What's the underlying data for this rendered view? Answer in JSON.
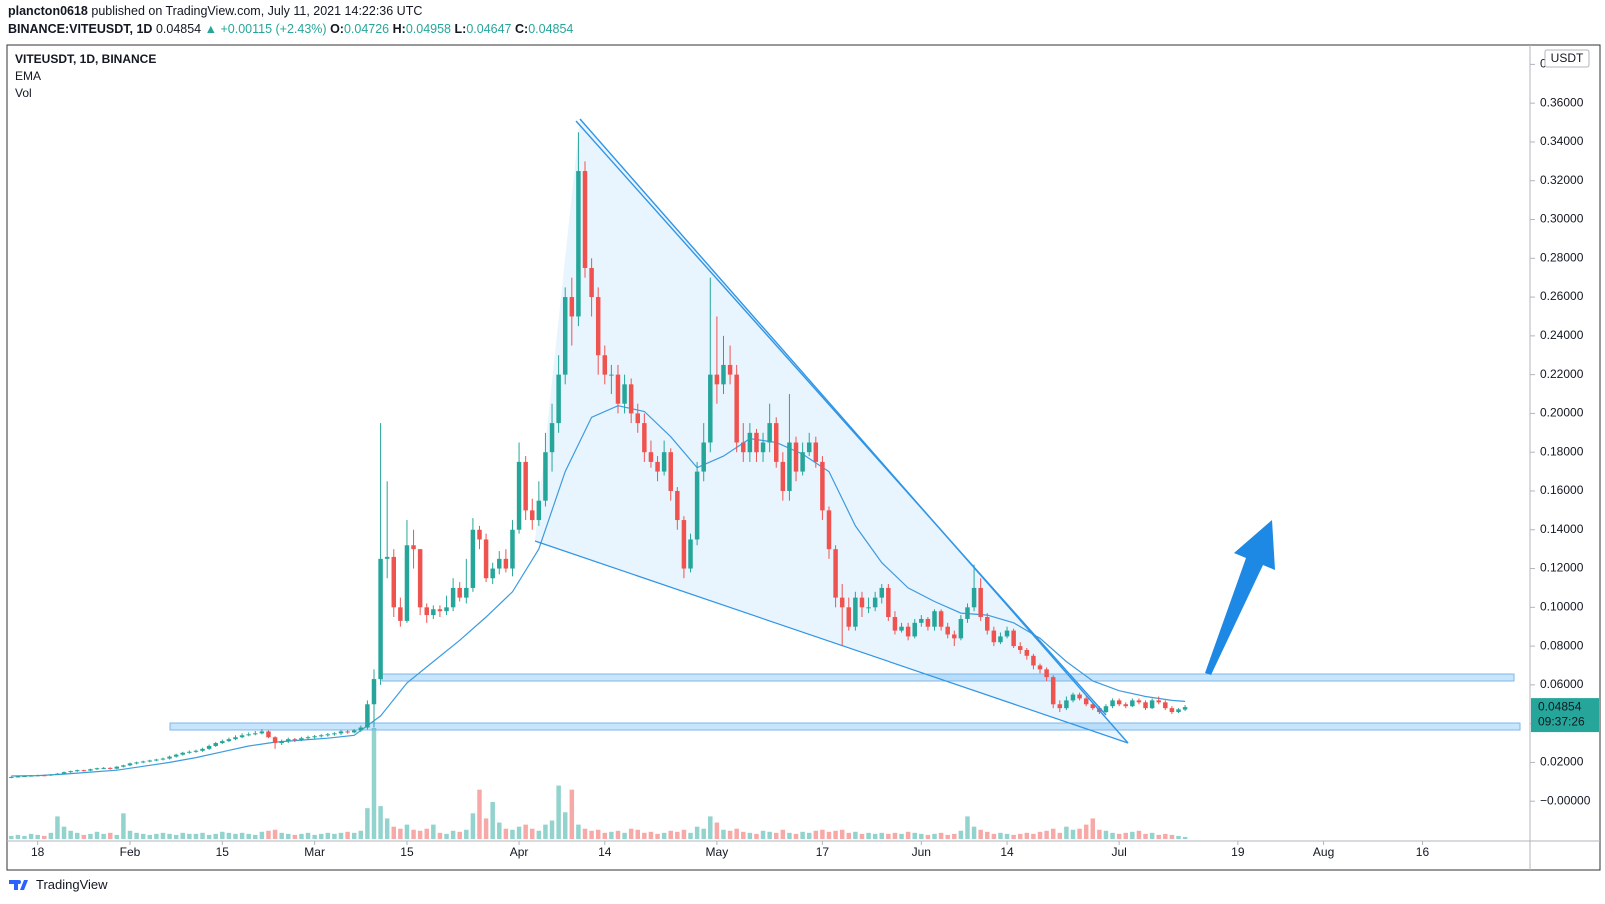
{
  "header": {
    "publisher": "plancton0618",
    "published": "published on TradingView.com, July 11, 2021 14:22:36 UTC",
    "symbol": "BINANCE:VITEUSDT, 1D",
    "last": "0.04854",
    "change": "▲ +0.00115 (+2.43%)",
    "o_label": "O:",
    "o": "0.04726",
    "h_label": "H:",
    "h": "0.04958",
    "l_label": "L:",
    "l": "0.04647",
    "c_label": "C:",
    "c": "0.04854",
    "footer": "TradingView"
  },
  "chart_data": {
    "type": "candlestick",
    "legend": [
      "VITEUSDT, 1D, BINANCE",
      "EMA",
      "Vol"
    ],
    "currency": "USDT",
    "countdown": "09:37:26",
    "up_color": "#26a69a",
    "down_color": "#ef5350",
    "vol_up_color": "#92d3cd",
    "vol_down_color": "#f7a9a7",
    "grid": false,
    "xlim": [
      -0.5,
      230
    ],
    "ylim": [
      -0.02,
      0.39
    ],
    "xticks": [
      {
        "value": 4,
        "label": "18"
      },
      {
        "value": 18,
        "label": "Feb"
      },
      {
        "value": 32,
        "label": "15"
      },
      {
        "value": 46,
        "label": "Mar"
      },
      {
        "value": 60,
        "label": "15"
      },
      {
        "value": 77,
        "label": "Apr"
      },
      {
        "value": 90,
        "label": "14"
      },
      {
        "value": 107,
        "label": "May"
      },
      {
        "value": 123,
        "label": "17"
      },
      {
        "value": 138,
        "label": "Jun"
      },
      {
        "value": 151,
        "label": "14"
      },
      {
        "value": 168,
        "label": "Jul"
      },
      {
        "value": 186,
        "label": "19"
      },
      {
        "value": 199,
        "label": "Aug"
      },
      {
        "value": 214,
        "label": "16"
      }
    ],
    "yticks": [
      {
        "value": 0.38,
        "label": "0"
      },
      {
        "value": 0.36,
        "label": "0.36000"
      },
      {
        "value": 0.34,
        "label": "0.34000"
      },
      {
        "value": 0.32,
        "label": "0.32000"
      },
      {
        "value": 0.3,
        "label": "0.30000"
      },
      {
        "value": 0.28,
        "label": "0.28000"
      },
      {
        "value": 0.26,
        "label": "0.26000"
      },
      {
        "value": 0.24,
        "label": "0.24000"
      },
      {
        "value": 0.22,
        "label": "0.22000"
      },
      {
        "value": 0.2,
        "label": "0.20000"
      },
      {
        "value": 0.18,
        "label": "0.18000"
      },
      {
        "value": 0.16,
        "label": "0.16000"
      },
      {
        "value": 0.14,
        "label": "0.14000"
      },
      {
        "value": 0.12,
        "label": "0.12000"
      },
      {
        "value": 0.1,
        "label": "0.10000"
      },
      {
        "value": 0.08,
        "label": "0.08000"
      },
      {
        "value": 0.06,
        "label": "0.06000"
      },
      {
        "value": 0.04,
        "label": "0.04000"
      },
      {
        "value": 0.02,
        "label": "0.02000"
      },
      {
        "value": 0,
        "label": "−0.00000"
      }
    ],
    "open": [
      0.0122,
      0.0125,
      0.0128,
      0.013,
      0.0132,
      0.0134,
      0.0133,
      0.0138,
      0.0142,
      0.015,
      0.0155,
      0.016,
      0.0158,
      0.0165,
      0.017,
      0.0172,
      0.0168,
      0.0178,
      0.0185,
      0.0195,
      0.02,
      0.0205,
      0.021,
      0.0215,
      0.022,
      0.023,
      0.024,
      0.025,
      0.0255,
      0.026,
      0.027,
      0.0285,
      0.03,
      0.031,
      0.032,
      0.033,
      0.034,
      0.0345,
      0.035,
      0.036,
      0.033,
      0.03,
      0.031,
      0.032,
      0.0315,
      0.0325,
      0.033,
      0.0335,
      0.034,
      0.0345,
      0.035,
      0.036,
      0.0355,
      0.0365,
      0.038,
      0.05,
      0.063,
      0.125,
      0.126,
      0.1,
      0.093,
      0.132,
      0.13,
      0.1,
      0.096,
      0.099,
      0.098,
      0.1,
      0.11,
      0.105,
      0.11,
      0.14,
      0.135,
      0.115,
      0.12,
      0.125,
      0.12,
      0.14,
      0.175,
      0.15,
      0.145,
      0.155,
      0.18,
      0.195,
      0.22,
      0.26,
      0.25,
      0.325,
      0.275,
      0.26,
      0.23,
      0.22,
      0.22,
      0.205,
      0.215,
      0.2,
      0.195,
      0.18,
      0.175,
      0.17,
      0.18,
      0.16,
      0.145,
      0.12,
      0.135,
      0.17,
      0.185,
      0.22,
      0.215,
      0.225,
      0.22,
      0.185,
      0.18,
      0.19,
      0.18,
      0.185,
      0.195,
      0.175,
      0.16,
      0.185,
      0.17,
      0.18,
      0.185,
      0.175,
      0.15,
      0.13,
      0.105,
      0.1,
      0.09,
      0.105,
      0.1,
      0.1,
      0.105,
      0.11,
      0.095,
      0.088,
      0.09,
      0.085,
      0.092,
      0.094,
      0.09,
      0.098,
      0.09,
      0.086,
      0.084,
      0.094,
      0.1,
      0.11,
      0.095,
      0.088,
      0.082,
      0.085,
      0.088,
      0.08,
      0.078,
      0.075,
      0.07,
      0.068,
      0.064,
      0.05,
      0.048,
      0.052,
      0.055,
      0.053,
      0.05,
      0.048,
      0.046,
      0.049,
      0.052,
      0.05,
      0.049,
      0.052,
      0.051,
      0.048,
      0.052,
      0.051,
      0.048,
      0.046,
      0.04726
    ],
    "high": [
      0.0128,
      0.0131,
      0.0133,
      0.0135,
      0.0137,
      0.0137,
      0.014,
      0.0145,
      0.0153,
      0.0158,
      0.0163,
      0.0163,
      0.0168,
      0.0173,
      0.0176,
      0.0175,
      0.0181,
      0.0188,
      0.0199,
      0.0204,
      0.0209,
      0.0214,
      0.0219,
      0.0225,
      0.0235,
      0.0245,
      0.0255,
      0.0262,
      0.0266,
      0.0276,
      0.0292,
      0.0306,
      0.0318,
      0.0328,
      0.034,
      0.035,
      0.0355,
      0.0362,
      0.0372,
      0.0365,
      0.0335,
      0.0318,
      0.0328,
      0.0326,
      0.0332,
      0.0338,
      0.0342,
      0.0346,
      0.0352,
      0.0356,
      0.0368,
      0.0366,
      0.0372,
      0.039,
      0.052,
      0.068,
      0.195,
      0.165,
      0.13,
      0.105,
      0.145,
      0.14,
      0.13,
      0.102,
      0.101,
      0.101,
      0.106,
      0.115,
      0.113,
      0.125,
      0.146,
      0.142,
      0.138,
      0.123,
      0.129,
      0.13,
      0.145,
      0.185,
      0.178,
      0.156,
      0.165,
      0.19,
      0.205,
      0.23,
      0.265,
      0.27,
      0.345,
      0.33,
      0.28,
      0.265,
      0.235,
      0.225,
      0.225,
      0.22,
      0.218,
      0.205,
      0.2,
      0.186,
      0.178,
      0.186,
      0.182,
      0.162,
      0.147,
      0.138,
      0.175,
      0.195,
      0.27,
      0.25,
      0.24,
      0.235,
      0.225,
      0.195,
      0.195,
      0.192,
      0.19,
      0.205,
      0.198,
      0.18,
      0.21,
      0.188,
      0.185,
      0.19,
      0.188,
      0.178,
      0.152,
      0.132,
      0.112,
      0.105,
      0.108,
      0.108,
      0.105,
      0.108,
      0.112,
      0.112,
      0.098,
      0.092,
      0.092,
      0.094,
      0.096,
      0.095,
      0.099,
      0.099,
      0.092,
      0.088,
      0.096,
      0.102,
      0.122,
      0.115,
      0.097,
      0.09,
      0.087,
      0.09,
      0.089,
      0.082,
      0.079,
      0.076,
      0.071,
      0.069,
      0.065,
      0.052,
      0.054,
      0.056,
      0.056,
      0.054,
      0.051,
      0.049,
      0.05,
      0.053,
      0.053,
      0.051,
      0.053,
      0.053,
      0.052,
      0.053,
      0.054,
      0.052,
      0.049,
      0.048,
      0.04958
    ],
    "low": [
      0.0119,
      0.0122,
      0.0125,
      0.0127,
      0.0129,
      0.013,
      0.013,
      0.0135,
      0.0139,
      0.0146,
      0.0151,
      0.0154,
      0.0155,
      0.0161,
      0.0166,
      0.0163,
      0.0164,
      0.0174,
      0.0181,
      0.019,
      0.0196,
      0.0201,
      0.0206,
      0.021,
      0.0215,
      0.0225,
      0.0235,
      0.0245,
      0.025,
      0.0255,
      0.0265,
      0.028,
      0.0295,
      0.0305,
      0.0315,
      0.0325,
      0.0335,
      0.034,
      0.0345,
      0.0325,
      0.027,
      0.029,
      0.03,
      0.0305,
      0.031,
      0.0318,
      0.0322,
      0.0328,
      0.0333,
      0.0338,
      0.0342,
      0.0348,
      0.035,
      0.0358,
      0.037,
      0.038,
      0.06,
      0.115,
      0.095,
      0.09,
      0.092,
      0.12,
      0.096,
      0.092,
      0.094,
      0.095,
      0.096,
      0.098,
      0.103,
      0.102,
      0.108,
      0.13,
      0.113,
      0.112,
      0.117,
      0.118,
      0.116,
      0.138,
      0.145,
      0.14,
      0.142,
      0.152,
      0.17,
      0.19,
      0.215,
      0.235,
      0.245,
      0.27,
      0.25,
      0.22,
      0.215,
      0.21,
      0.2,
      0.2,
      0.195,
      0.19,
      0.175,
      0.172,
      0.165,
      0.168,
      0.155,
      0.14,
      0.115,
      0.118,
      0.132,
      0.165,
      0.18,
      0.205,
      0.21,
      0.215,
      0.18,
      0.175,
      0.175,
      0.175,
      0.175,
      0.18,
      0.172,
      0.155,
      0.155,
      0.165,
      0.168,
      0.178,
      0.172,
      0.145,
      0.125,
      0.1,
      0.08,
      0.088,
      0.088,
      0.095,
      0.097,
      0.098,
      0.102,
      0.093,
      0.086,
      0.087,
      0.083,
      0.084,
      0.09,
      0.088,
      0.088,
      0.088,
      0.084,
      0.08,
      0.083,
      0.092,
      0.098,
      0.093,
      0.086,
      0.08,
      0.081,
      0.084,
      0.079,
      0.076,
      0.073,
      0.068,
      0.066,
      0.062,
      0.048,
      0.046,
      0.047,
      0.051,
      0.052,
      0.049,
      0.047,
      0.045,
      0.0455,
      0.048,
      0.049,
      0.048,
      0.0485,
      0.05,
      0.047,
      0.0475,
      0.05,
      0.047,
      0.045,
      0.0455,
      0.04647
    ],
    "close": [
      0.0125,
      0.0128,
      0.013,
      0.0132,
      0.0134,
      0.0133,
      0.0138,
      0.0142,
      0.015,
      0.0155,
      0.016,
      0.0158,
      0.0165,
      0.017,
      0.0172,
      0.0168,
      0.0178,
      0.0185,
      0.0195,
      0.02,
      0.0205,
      0.021,
      0.0215,
      0.022,
      0.023,
      0.024,
      0.025,
      0.0255,
      0.026,
      0.027,
      0.0285,
      0.03,
      0.031,
      0.032,
      0.033,
      0.034,
      0.0345,
      0.035,
      0.036,
      0.033,
      0.03,
      0.031,
      0.032,
      0.0315,
      0.0325,
      0.033,
      0.0335,
      0.034,
      0.0345,
      0.035,
      0.036,
      0.0355,
      0.0365,
      0.038,
      0.05,
      0.063,
      0.125,
      0.126,
      0.1,
      0.093,
      0.132,
      0.13,
      0.1,
      0.096,
      0.099,
      0.098,
      0.1,
      0.11,
      0.105,
      0.11,
      0.14,
      0.135,
      0.115,
      0.12,
      0.125,
      0.12,
      0.14,
      0.175,
      0.15,
      0.145,
      0.155,
      0.18,
      0.195,
      0.22,
      0.26,
      0.25,
      0.325,
      0.275,
      0.26,
      0.23,
      0.22,
      0.22,
      0.205,
      0.215,
      0.2,
      0.195,
      0.18,
      0.175,
      0.17,
      0.18,
      0.16,
      0.145,
      0.12,
      0.135,
      0.17,
      0.185,
      0.22,
      0.215,
      0.225,
      0.22,
      0.185,
      0.18,
      0.19,
      0.18,
      0.185,
      0.195,
      0.175,
      0.16,
      0.185,
      0.17,
      0.18,
      0.185,
      0.175,
      0.15,
      0.13,
      0.105,
      0.1,
      0.09,
      0.105,
      0.1,
      0.1,
      0.105,
      0.11,
      0.095,
      0.088,
      0.09,
      0.085,
      0.092,
      0.094,
      0.09,
      0.098,
      0.09,
      0.086,
      0.084,
      0.094,
      0.1,
      0.11,
      0.095,
      0.088,
      0.082,
      0.085,
      0.088,
      0.08,
      0.078,
      0.075,
      0.07,
      0.068,
      0.064,
      0.05,
      0.048,
      0.052,
      0.055,
      0.053,
      0.05,
      0.048,
      0.046,
      0.049,
      0.052,
      0.05,
      0.049,
      0.052,
      0.051,
      0.048,
      0.052,
      0.051,
      0.048,
      0.046,
      0.04739,
      0.04854
    ],
    "volume": [
      3,
      4,
      3,
      5,
      4,
      3,
      6,
      22,
      12,
      8,
      6,
      4,
      5,
      7,
      5,
      6,
      4,
      25,
      8,
      6,
      5,
      4,
      5,
      6,
      5,
      4,
      6,
      5,
      5,
      6,
      4,
      5,
      7,
      6,
      5,
      6,
      5,
      4,
      7,
      8,
      9,
      6,
      5,
      4,
      5,
      6,
      4,
      5,
      6,
      5,
      6,
      7,
      6,
      8,
      30,
      108,
      32,
      20,
      12,
      10,
      14,
      9,
      8,
      10,
      14,
      6,
      5,
      8,
      7,
      9,
      25,
      48,
      20,
      36,
      16,
      10,
      9,
      12,
      14,
      10,
      8,
      14,
      18,
      52,
      26,
      48,
      14,
      10,
      8,
      9,
      6,
      7,
      8,
      6,
      10,
      9,
      6,
      7,
      5,
      6,
      8,
      7,
      9,
      6,
      12,
      10,
      22,
      16,
      9,
      8,
      10,
      7,
      6,
      5,
      8,
      7,
      6,
      9,
      6,
      5,
      7,
      6,
      8,
      9,
      7,
      8,
      9,
      6,
      7,
      5,
      6,
      5,
      6,
      5,
      6,
      5,
      7,
      6,
      5,
      4,
      5,
      6,
      4,
      5,
      8,
      22,
      12,
      9,
      7,
      5,
      6,
      5,
      4,
      5,
      6,
      5,
      7,
      8,
      10,
      6,
      12,
      9,
      10,
      14,
      20,
      9,
      8,
      6,
      5,
      6,
      7,
      8,
      5,
      6,
      4,
      5,
      4,
      3,
      2
    ],
    "ema": {
      "color": "#3d9be0",
      "x": [
        0,
        4,
        8,
        12,
        16,
        20,
        24,
        28,
        32,
        36,
        40,
        44,
        48,
        52,
        56,
        60,
        64,
        68,
        72,
        76,
        80,
        84,
        88,
        92,
        96,
        100,
        104,
        108,
        112,
        116,
        120,
        124,
        128,
        132,
        136,
        140,
        144,
        148,
        152,
        156,
        160,
        164,
        168,
        172,
        176,
        178
      ],
      "values": [
        0.013,
        0.0132,
        0.014,
        0.015,
        0.016,
        0.018,
        0.02,
        0.0225,
        0.0255,
        0.0285,
        0.0305,
        0.0315,
        0.0325,
        0.034,
        0.044,
        0.061,
        0.072,
        0.083,
        0.095,
        0.108,
        0.13,
        0.17,
        0.198,
        0.204,
        0.201,
        0.188,
        0.172,
        0.178,
        0.187,
        0.185,
        0.179,
        0.17,
        0.142,
        0.123,
        0.11,
        0.103,
        0.097,
        0.096,
        0.092,
        0.084,
        0.072,
        0.062,
        0.057,
        0.054,
        0.052,
        0.0515
      ]
    }
  }
}
